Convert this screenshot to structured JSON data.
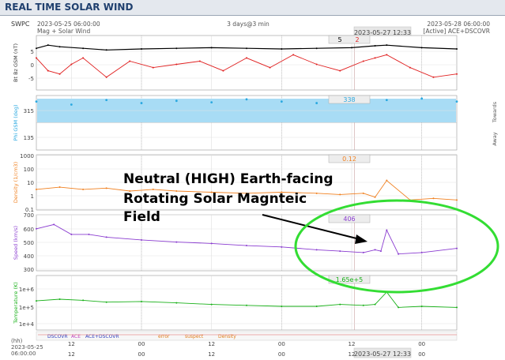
{
  "window": {
    "title": "REAL TIME SOLAR WIND"
  },
  "header": {
    "org": "SWPC",
    "start_time": "2023-05-25 06:00:00",
    "product": "Mag + Solar Wind",
    "span": "3 days@3 min",
    "cursor_time": "2023-05-27 12:33",
    "end_time": "2023-05-28 06:00:00",
    "source": "[Active] ACE+DSCOVR"
  },
  "readouts": {
    "bt": "5",
    "bz": "2",
    "phi": "338",
    "density": "0.12",
    "speed": "406",
    "temperature": "1.65e+5"
  },
  "side_labels": {
    "toward": "Towards",
    "away": "Away"
  },
  "legend_sources": [
    "DSCOVR",
    "ACE",
    "ACE+DSCOVR"
  ],
  "legend_flags": [
    "error",
    "suspect",
    "Density"
  ],
  "hh_label": "(hh)",
  "bottom_date": [
    "2023-05-25",
    "06:00:00"
  ],
  "annotation": {
    "text_lines": [
      "Neutral (HIGH) Earth-facing",
      "Rotating Solar Magnteic",
      "Field"
    ]
  },
  "colors": {
    "bt": "#000000",
    "bz": "#e02020",
    "phi": "#2aa8e0",
    "phi_band": "#a8dcf5",
    "density": "#f08020",
    "speed": "#8a3cd0",
    "temperature": "#18b018",
    "ellipse": "#33dd33",
    "title": "#1f3f6e"
  },
  "chart_data": [
    {
      "type": "line",
      "name": "panel-mag",
      "ylabel": "Bt Bz GSM (nT)",
      "y_ticks": [
        "5",
        "0",
        "-5"
      ],
      "ylim": [
        -8,
        9
      ],
      "x_ticks": [
        "12",
        "00",
        "12",
        "00",
        "12",
        "00"
      ],
      "series": [
        {
          "name": "Bt",
          "x": [
            0,
            2,
            4,
            8,
            12,
            18,
            24,
            30,
            36,
            42,
            48,
            54,
            58,
            60,
            66,
            72
          ],
          "y": [
            5,
            6,
            5.5,
            5,
            4.5,
            4.8,
            5,
            5.2,
            5,
            4.8,
            5,
            5.2,
            5.8,
            6,
            5.2,
            4.8
          ]
        },
        {
          "name": "Bz",
          "x": [
            0,
            2,
            4,
            6,
            8,
            12,
            16,
            20,
            24,
            28,
            32,
            36,
            40,
            44,
            48,
            52,
            56,
            58,
            60,
            64,
            68,
            72
          ],
          "y": [
            2,
            -2,
            -3,
            0,
            2,
            -4,
            1,
            -1,
            0,
            1,
            -2,
            2,
            -1,
            3,
            0,
            -2,
            1,
            2,
            3,
            -1,
            -4,
            -3
          ]
        }
      ]
    },
    {
      "type": "scatter",
      "name": "panel-phi",
      "ylabel": "Phi GSM (deg)",
      "y_ticks": [
        "315",
        "135"
      ],
      "ylim": [
        0,
        360
      ],
      "series": [
        {
          "name": "Phi",
          "x": [
            0,
            6,
            12,
            18,
            24,
            30,
            36,
            42,
            48,
            54,
            60,
            66,
            72
          ],
          "y": [
            320,
            300,
            330,
            310,
            325,
            315,
            335,
            320,
            310,
            325,
            330,
            340,
            320
          ]
        }
      ]
    },
    {
      "type": "line",
      "name": "panel-density",
      "ylabel": "Density (1/cm3)",
      "y_ticks": [
        "1000",
        "100",
        "10",
        "1",
        "0.1"
      ],
      "ylim": [
        0.05,
        1000
      ],
      "yscale": "log",
      "series": [
        {
          "name": "Density",
          "x": [
            0,
            4,
            8,
            12,
            16,
            20,
            24,
            30,
            36,
            42,
            48,
            52,
            56,
            58,
            60,
            64,
            68,
            72
          ],
          "y": [
            2,
            3,
            2,
            2.5,
            1.5,
            2,
            1.5,
            1.2,
            1,
            1.2,
            1,
            0.8,
            1,
            0.5,
            10,
            0.3,
            0.4,
            0.3
          ]
        }
      ]
    },
    {
      "type": "line",
      "name": "panel-speed",
      "ylabel": "Speed (km/s)",
      "y_ticks": [
        "700",
        "600",
        "500",
        "400",
        "300"
      ],
      "ylim": [
        300,
        700
      ],
      "series": [
        {
          "name": "Speed",
          "x": [
            0,
            3,
            6,
            9,
            12,
            18,
            24,
            30,
            36,
            42,
            48,
            52,
            56,
            58,
            59,
            60,
            62,
            66,
            72
          ],
          "y": [
            600,
            630,
            560,
            560,
            540,
            520,
            505,
            495,
            480,
            470,
            450,
            440,
            430,
            450,
            440,
            590,
            420,
            430,
            460
          ]
        }
      ]
    },
    {
      "type": "line",
      "name": "panel-temperature",
      "ylabel": "Temperature (K)",
      "y_ticks": [
        "1e+6",
        "1e+5",
        "1e+4"
      ],
      "ylim": [
        10000,
        2000000
      ],
      "yscale": "log",
      "series": [
        {
          "name": "Temperature",
          "x": [
            0,
            4,
            8,
            12,
            18,
            24,
            30,
            36,
            42,
            48,
            52,
            56,
            58,
            60,
            62,
            66,
            72
          ],
          "y": [
            170000,
            200000,
            180000,
            150000,
            160000,
            140000,
            120000,
            110000,
            100000,
            100000,
            120000,
            110000,
            120000,
            400000,
            90000,
            100000,
            90000
          ]
        }
      ]
    }
  ]
}
